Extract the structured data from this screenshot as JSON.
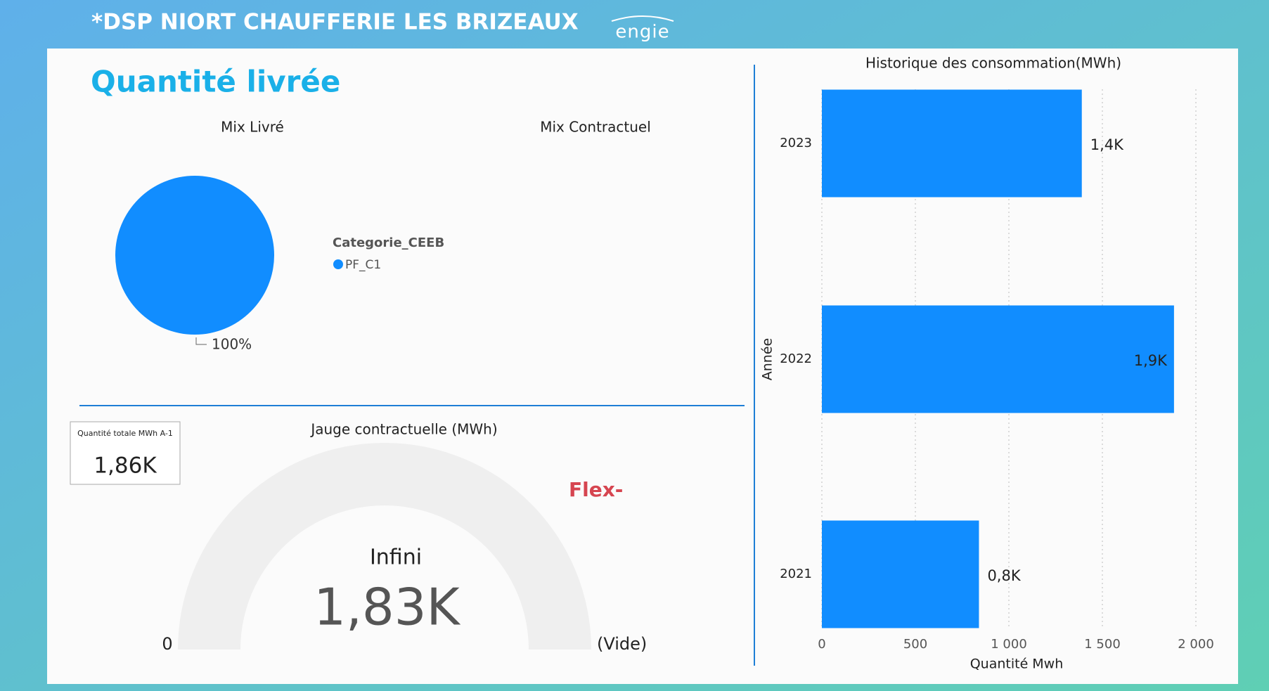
{
  "header": {
    "title": "*DSP NIORT CHAUFFERIE LES BRIZEAUX",
    "logo": "engie"
  },
  "section_title": "Quantité livrée",
  "chart_data": [
    {
      "type": "pie",
      "title": "Mix Livré",
      "legend_title": "Categorie_CEEB",
      "categories": [
        "PF_C1"
      ],
      "values": [
        100
      ],
      "value_labels": [
        "100%"
      ],
      "colors": [
        "#118dff"
      ]
    },
    {
      "type": "pie",
      "title": "Mix Contractuel"
    },
    {
      "type": "card",
      "label": "Quantité totale MWh A-1",
      "value": 1860,
      "value_label": "1,86K"
    },
    {
      "type": "gauge",
      "title": "Jauge contractuelle (MWh)",
      "value": 1830,
      "value_label": "1,83K",
      "min_label": "0",
      "max_label": "(Vide)",
      "target_label": "Infini",
      "annotation": "Flex-"
    },
    {
      "type": "hbar",
      "title": "Historique des consommation(MWh)",
      "categories": [
        "2023",
        "2022",
        "2021"
      ],
      "values": [
        1390,
        1883,
        840
      ],
      "value_labels": [
        "1,4K",
        "1,9K",
        "0,8K"
      ],
      "color": "#118dff",
      "xlim": [
        0,
        2000
      ],
      "xticks": [
        0,
        500,
        {
          "value": 1000,
          "label": "1 000"
        },
        {
          "value": 1500,
          "label": "1 500"
        },
        {
          "value": 2000,
          "label": "2 000"
        }
      ],
      "xlabel": "Quantité Mwh",
      "ylabel": "Année",
      "grid": true
    }
  ]
}
